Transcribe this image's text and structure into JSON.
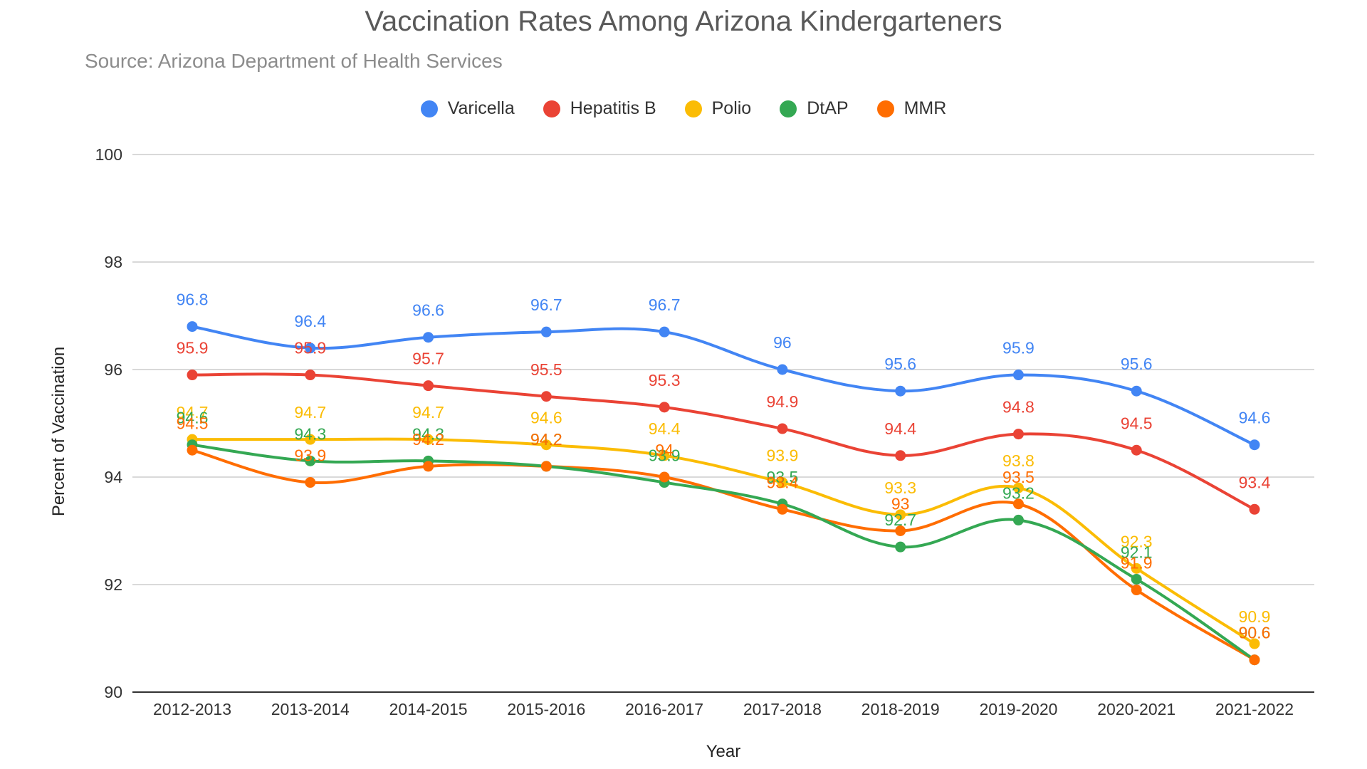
{
  "chart_data": {
    "type": "line",
    "title": "Vaccination Rates Among Arizona Kindergarteners",
    "subtitle": "Source: Arizona Department of Health Services",
    "xlabel": "Year",
    "ylabel": "Percent of Vaccination",
    "ylim": [
      90,
      100
    ],
    "yticks": [
      90,
      92,
      94,
      96,
      98,
      100
    ],
    "grid": true,
    "legend": "top",
    "categories": [
      "2012-2013",
      "2013-2014",
      "2014-2015",
      "2015-2016",
      "2016-2017",
      "2017-2018",
      "2018-2019",
      "2019-2020",
      "2020-2021",
      "2021-2022"
    ],
    "series": [
      {
        "name": "Varicella",
        "color": "#4285f4",
        "values": [
          96.8,
          96.4,
          96.6,
          96.7,
          96.7,
          96,
          95.6,
          95.9,
          95.6,
          94.6
        ]
      },
      {
        "name": "Hepatitis B",
        "color": "#ea4335",
        "values": [
          95.9,
          95.9,
          95.7,
          95.5,
          95.3,
          94.9,
          94.4,
          94.8,
          94.5,
          93.4
        ]
      },
      {
        "name": "Polio",
        "color": "#fbbc04",
        "values": [
          94.7,
          94.7,
          94.7,
          94.6,
          94.4,
          93.9,
          93.3,
          93.8,
          92.3,
          90.9
        ]
      },
      {
        "name": "DtAP",
        "color": "#34a853",
        "values": [
          94.6,
          94.3,
          94.3,
          94.2,
          93.9,
          93.5,
          92.7,
          93.2,
          92.1,
          90.6
        ]
      },
      {
        "name": "MMR",
        "color": "#ff6d01",
        "values": [
          94.5,
          93.9,
          94.2,
          94.2,
          94,
          93.4,
          93,
          93.5,
          91.9,
          90.6
        ]
      }
    ]
  }
}
